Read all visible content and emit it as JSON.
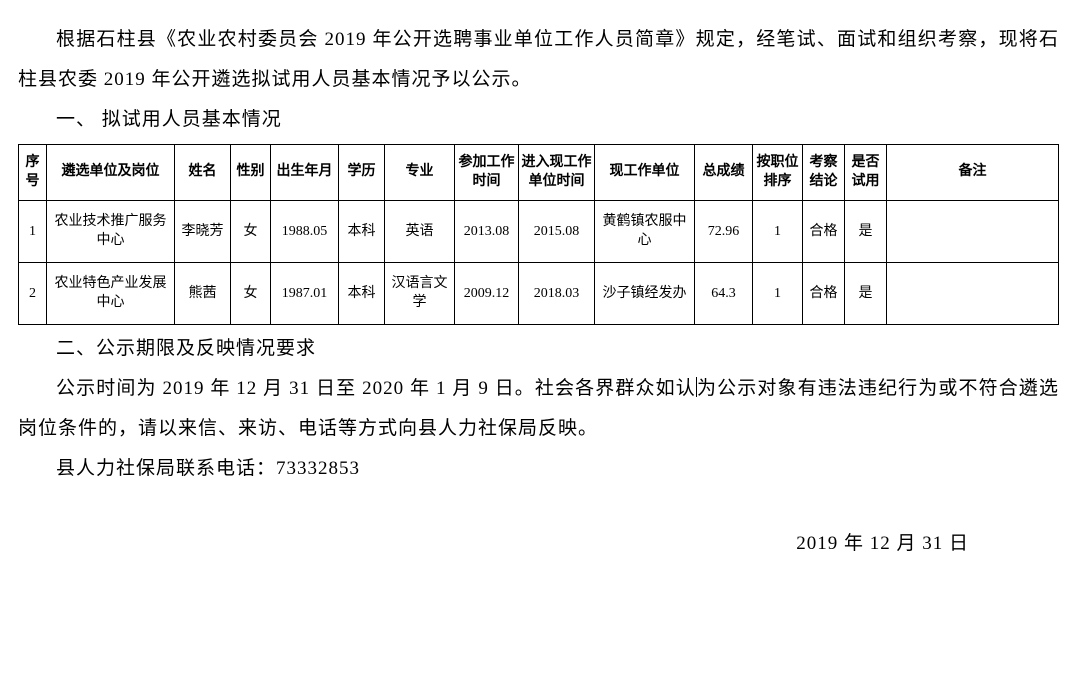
{
  "para1": "根据石柱县《农业农村委员会 2019 年公开选聘事业单位工作人员简章》规定，经笔试、面试和组织考察，现将石柱县农委 2019 年公开遴选拟试用人员基本情况予以公示。",
  "section1": "一、 拟试用人员基本情况",
  "table": {
    "headers": [
      "序号",
      "遴选单位及岗位",
      "姓名",
      "性别",
      "出生年月",
      "学历",
      "专业",
      "参加工作时间",
      "进入现工作单位时间",
      "现工作单位",
      "总成绩",
      "按职位排序",
      "考察结论",
      "是否试用",
      "备注"
    ],
    "rows": [
      [
        "1",
        "农业技术推广服务中心",
        "李晓芳",
        "女",
        "1988.05",
        "本科",
        "英语",
        "2013.08",
        "2015.08",
        "黄鹤镇农服中心",
        "72.96",
        "1",
        "合格",
        "是",
        ""
      ],
      [
        "2",
        "农业特色产业发展中心",
        "熊茜",
        "女",
        "1987.01",
        "本科",
        "汉语言文学",
        "2009.12",
        "2018.03",
        "沙子镇经发办",
        "64.3",
        "1",
        "合格",
        "是",
        ""
      ]
    ]
  },
  "section2": "二、公示期限及反映情况要求",
  "para2a": "公示时间为 2019 年 12 月 31 日至 2020 年 1 月 9 日。社会各界群众如认",
  "para2b": "为公示对象有违法违纪行为或不符合遴选岗位条件的，请以来信、来访、电话等方式向县人力社保局反映。",
  "para3": "县人力社保局联系电话：73332853",
  "date": "2019 年 12 月 31 日",
  "styles": {
    "text_color": "#000000",
    "background_color": "#ffffff",
    "border_color": "#000000",
    "body_fontsize": 19,
    "table_fontsize": 14
  }
}
